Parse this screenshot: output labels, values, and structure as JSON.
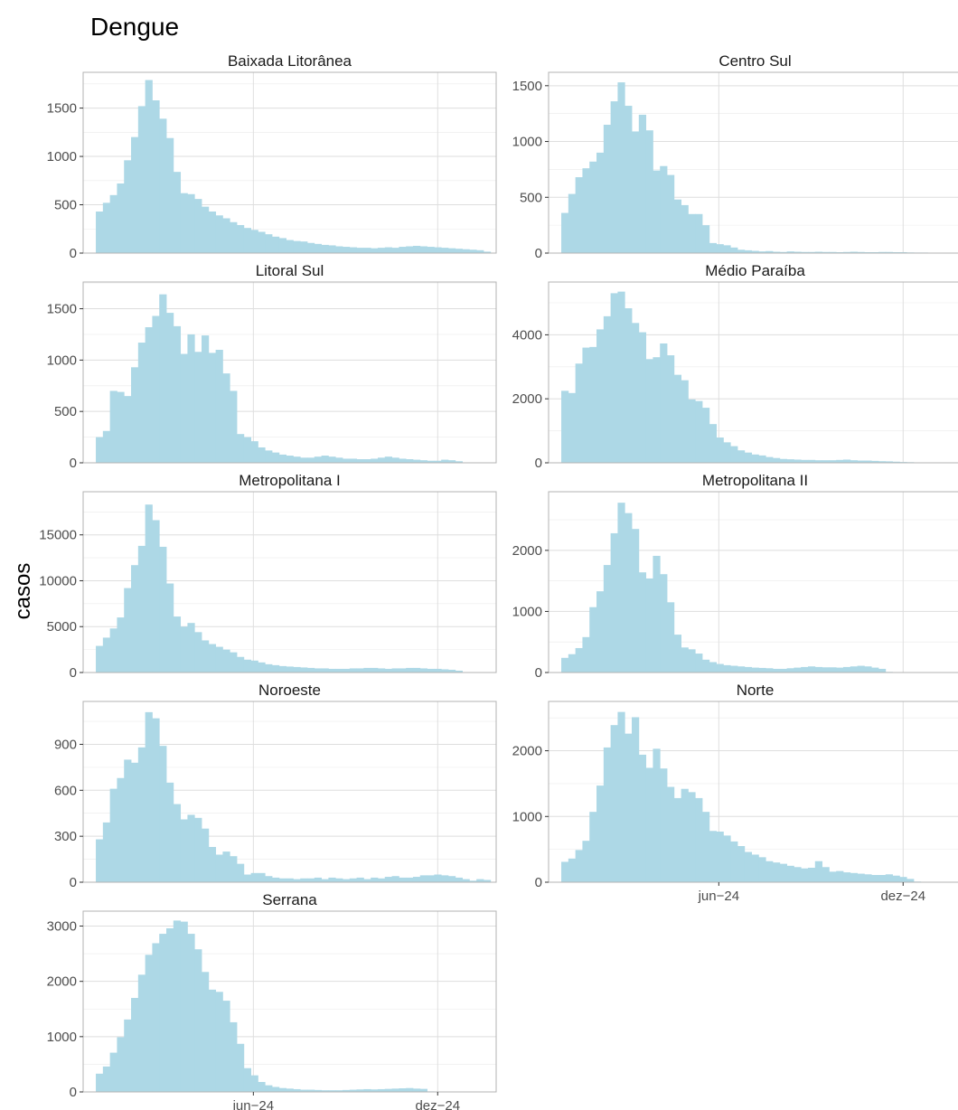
{
  "chart_data": {
    "type": "bar",
    "title": "Dengue",
    "ylabel": "casos",
    "xlabel": "",
    "x_ticks": [
      "jun−24",
      "dez−24"
    ],
    "grid": true,
    "bar_color": "#add8e6",
    "panels": [
      {
        "name": "Baixada Litorânea",
        "ylim": [
          0,
          1870
        ],
        "yticks": [
          0,
          500,
          1000,
          1500
        ],
        "values": [
          430,
          520,
          600,
          720,
          960,
          1200,
          1520,
          1790,
          1580,
          1390,
          1190,
          840,
          620,
          610,
          560,
          480,
          430,
          390,
          360,
          320,
          290,
          260,
          240,
          220,
          195,
          170,
          155,
          135,
          125,
          120,
          105,
          95,
          85,
          80,
          70,
          65,
          60,
          55,
          55,
          50,
          55,
          60,
          55,
          65,
          70,
          75,
          70,
          65,
          60,
          55,
          50,
          45,
          40,
          35,
          30,
          15
        ]
      },
      {
        "name": "Centro Sul",
        "ylim": [
          0,
          1620
        ],
        "yticks": [
          0,
          500,
          1000,
          1500
        ],
        "values": [
          360,
          530,
          680,
          760,
          820,
          900,
          1150,
          1360,
          1530,
          1320,
          1090,
          1240,
          1100,
          740,
          780,
          700,
          480,
          430,
          350,
          350,
          250,
          90,
          80,
          70,
          50,
          30,
          25,
          20,
          15,
          18,
          12,
          10,
          15,
          12,
          10,
          10,
          12,
          10,
          10,
          8,
          10,
          12,
          10,
          8,
          8,
          10,
          10,
          8,
          8,
          6,
          5,
          5
        ]
      },
      {
        "name": "Litoral Sul",
        "ylim": [
          0,
          1760
        ],
        "yticks": [
          0,
          500,
          1000,
          1500
        ],
        "values": [
          250,
          310,
          700,
          690,
          650,
          930,
          1170,
          1320,
          1430,
          1640,
          1460,
          1330,
          1060,
          1250,
          1080,
          1240,
          1070,
          1100,
          870,
          700,
          280,
          250,
          210,
          150,
          120,
          100,
          80,
          70,
          60,
          50,
          50,
          60,
          70,
          60,
          50,
          40,
          40,
          35,
          35,
          40,
          50,
          60,
          50,
          40,
          35,
          30,
          25,
          20,
          20,
          30,
          25,
          15
        ]
      },
      {
        "name": "Médio Paraíba",
        "ylim": [
          0,
          5650
        ],
        "yticks": [
          0,
          2000,
          4000
        ],
        "values": [
          2250,
          2180,
          3100,
          3600,
          3620,
          4170,
          4580,
          5300,
          5350,
          4830,
          4370,
          4080,
          3240,
          3300,
          3730,
          3360,
          2750,
          2580,
          1980,
          1930,
          1720,
          1210,
          790,
          640,
          520,
          390,
          320,
          260,
          230,
          180,
          150,
          120,
          110,
          100,
          90,
          90,
          80,
          80,
          80,
          90,
          100,
          80,
          70,
          70,
          60,
          50,
          45,
          35,
          25,
          20
        ]
      },
      {
        "name": "Metropolitana I",
        "ylim": [
          0,
          19700
        ],
        "yticks": [
          0,
          5000,
          10000,
          15000
        ],
        "values": [
          2900,
          3800,
          4800,
          6000,
          9200,
          11700,
          13800,
          18300,
          16600,
          13700,
          9700,
          6100,
          5000,
          5400,
          4400,
          3500,
          3100,
          2800,
          2500,
          2200,
          1700,
          1400,
          1300,
          1100,
          900,
          800,
          700,
          650,
          600,
          550,
          500,
          450,
          450,
          400,
          400,
          400,
          450,
          450,
          500,
          500,
          450,
          400,
          450,
          450,
          500,
          500,
          450,
          400,
          400,
          350,
          300,
          200
        ]
      },
      {
        "name": "Metropolitana II",
        "ylim": [
          0,
          2960
        ],
        "yticks": [
          0,
          1000,
          2000
        ],
        "values": [
          240,
          300,
          400,
          580,
          1070,
          1330,
          1760,
          2280,
          2780,
          2610,
          2350,
          1640,
          1540,
          1910,
          1610,
          1150,
          620,
          410,
          380,
          310,
          210,
          170,
          140,
          120,
          110,
          100,
          90,
          80,
          75,
          70,
          60,
          60,
          70,
          80,
          90,
          100,
          90,
          85,
          85,
          80,
          90,
          100,
          110,
          100,
          80,
          60,
          10
        ]
      },
      {
        "name": "Noroeste",
        "ylim": [
          0,
          1180
        ],
        "yticks": [
          0,
          300,
          600,
          900
        ],
        "values": [
          280,
          390,
          610,
          680,
          800,
          780,
          880,
          1110,
          1070,
          890,
          650,
          510,
          410,
          440,
          420,
          350,
          230,
          180,
          200,
          170,
          120,
          50,
          60,
          60,
          40,
          30,
          25,
          25,
          20,
          25,
          25,
          30,
          20,
          30,
          25,
          20,
          25,
          30,
          20,
          30,
          25,
          35,
          40,
          30,
          30,
          35,
          45,
          45,
          50,
          45,
          40,
          30,
          20,
          10,
          20,
          15
        ]
      },
      {
        "name": "Norte",
        "ylim": [
          0,
          2750
        ],
        "yticks": [
          0,
          1000,
          2000
        ],
        "values": [
          310,
          360,
          490,
          630,
          1070,
          1470,
          2050,
          2390,
          2590,
          2260,
          2510,
          1940,
          1740,
          2030,
          1730,
          1450,
          1280,
          1420,
          1370,
          1280,
          1070,
          780,
          770,
          710,
          620,
          550,
          460,
          420,
          380,
          320,
          300,
          280,
          250,
          230,
          210,
          220,
          320,
          230,
          160,
          170,
          150,
          140,
          130,
          120,
          110,
          110,
          120,
          100,
          80,
          50,
          10
        ]
      },
      {
        "name": "Serrana",
        "ylim": [
          0,
          3270
        ],
        "yticks": [
          0,
          1000,
          2000,
          3000
        ],
        "values": [
          330,
          460,
          710,
          990,
          1310,
          1700,
          2120,
          2480,
          2690,
          2860,
          2960,
          3100,
          3080,
          2860,
          2580,
          2170,
          1850,
          1810,
          1650,
          1260,
          870,
          430,
          300,
          180,
          120,
          90,
          70,
          60,
          50,
          40,
          40,
          35,
          30,
          30,
          30,
          35,
          40,
          45,
          50,
          45,
          50,
          55,
          60,
          65,
          70,
          60,
          55,
          10
        ]
      }
    ]
  }
}
